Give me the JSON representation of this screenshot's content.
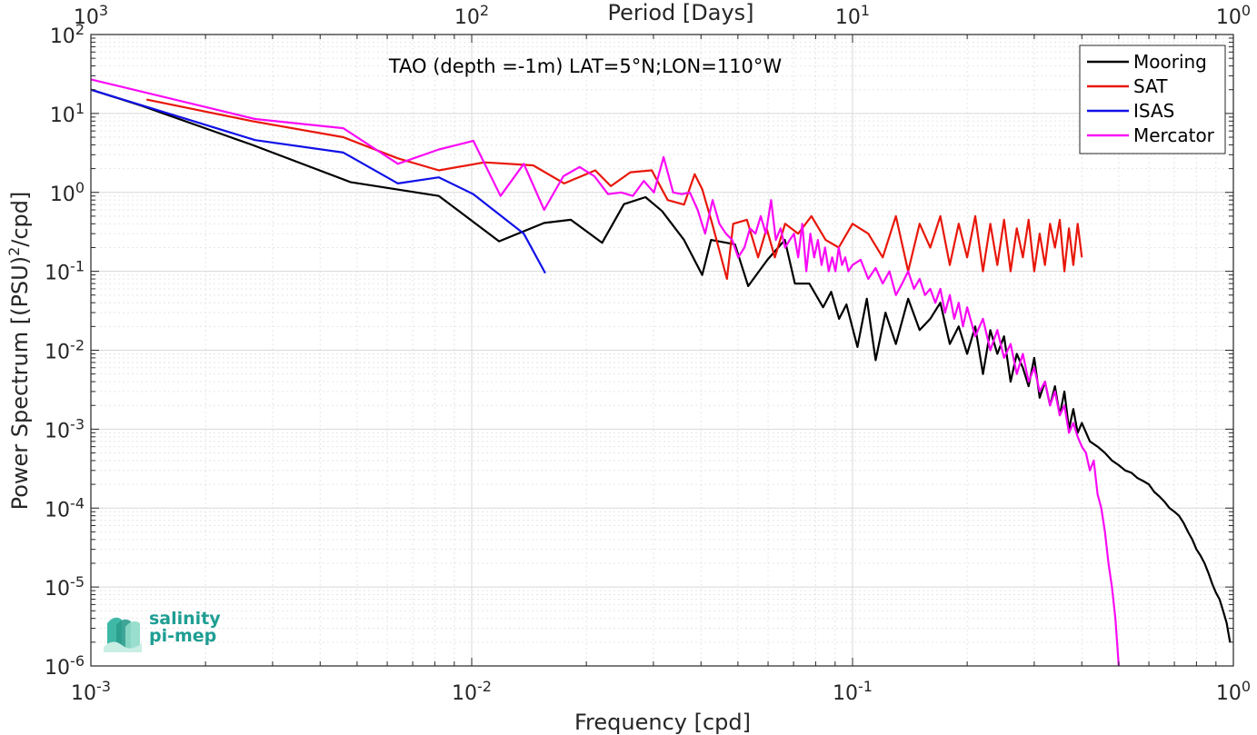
{
  "chart_data": {
    "type": "line",
    "title": "TAO (depth =-1m) LAT=5°N;LON=110°W",
    "xlabel": "Frequency [cpd]",
    "ylabel_main": "Power Spectrum [(PSU)",
    "ylabel_sup": "2",
    "ylabel_tail": "/cpd]",
    "top_xlabel": "Period [Days]",
    "xscale": "log",
    "yscale": "log",
    "xlim": [
      0.001,
      1
    ],
    "ylim": [
      1e-06,
      100
    ],
    "grid": true,
    "legend_position": "top-right",
    "xticks": [
      {
        "value": 0.001,
        "base": "10",
        "exp": "-3"
      },
      {
        "value": 0.01,
        "base": "10",
        "exp": "-2"
      },
      {
        "value": 0.1,
        "base": "10",
        "exp": "-1"
      },
      {
        "value": 1,
        "base": "10",
        "exp": "0"
      }
    ],
    "yticks": [
      {
        "value": 1e-06,
        "base": "10",
        "exp": "-6"
      },
      {
        "value": 1e-05,
        "base": "10",
        "exp": "-5"
      },
      {
        "value": 0.0001,
        "base": "10",
        "exp": "-4"
      },
      {
        "value": 0.001,
        "base": "10",
        "exp": "-3"
      },
      {
        "value": 0.01,
        "base": "10",
        "exp": "-2"
      },
      {
        "value": 0.1,
        "base": "10",
        "exp": "-1"
      },
      {
        "value": 1,
        "base": "10",
        "exp": "0"
      },
      {
        "value": 10,
        "base": "10",
        "exp": "1"
      },
      {
        "value": 100,
        "base": "10",
        "exp": "2"
      }
    ],
    "top_xticks": [
      {
        "freq": 0.001,
        "base": "10",
        "exp": "3"
      },
      {
        "freq": 0.01,
        "base": "10",
        "exp": "2"
      },
      {
        "freq": 0.1,
        "base": "10",
        "exp": "1"
      },
      {
        "freq": 1,
        "base": "10",
        "exp": "0"
      }
    ],
    "series": [
      {
        "name": "Mooring",
        "color": "#000000",
        "x": [
          0.001,
          0.00136,
          0.00265,
          0.0048,
          0.0082,
          0.0118,
          0.0155,
          0.0182,
          0.022,
          0.0251,
          0.0286,
          0.0316,
          0.0361,
          0.0403,
          0.0425,
          0.0491,
          0.0532,
          0.0598,
          0.0664,
          0.0706,
          0.077,
          0.0837,
          0.0879,
          0.0922,
          0.0964,
          0.103,
          0.109,
          0.115,
          0.122,
          0.13,
          0.14,
          0.15,
          0.16,
          0.17,
          0.18,
          0.19,
          0.2,
          0.21,
          0.22,
          0.23,
          0.24,
          0.25,
          0.26,
          0.27,
          0.28,
          0.29,
          0.3,
          0.31,
          0.32,
          0.33,
          0.34,
          0.35,
          0.36,
          0.37,
          0.38,
          0.39,
          0.4,
          0.42,
          0.44,
          0.46,
          0.48,
          0.5,
          0.52,
          0.54,
          0.56,
          0.58,
          0.6,
          0.62,
          0.64,
          0.66,
          0.68,
          0.7,
          0.72,
          0.74,
          0.76,
          0.78,
          0.8,
          0.82,
          0.84,
          0.86,
          0.88,
          0.9,
          0.92,
          0.94,
          0.96,
          0.98
        ],
        "y": [
          20,
          12.5,
          4.0,
          1.35,
          0.9,
          0.24,
          0.41,
          0.45,
          0.23,
          0.71,
          0.87,
          0.58,
          0.25,
          0.09,
          0.25,
          0.22,
          0.065,
          0.14,
          0.25,
          0.07,
          0.07,
          0.035,
          0.055,
          0.025,
          0.038,
          0.011,
          0.045,
          0.0075,
          0.03,
          0.012,
          0.045,
          0.018,
          0.025,
          0.04,
          0.012,
          0.02,
          0.009,
          0.02,
          0.005,
          0.018,
          0.009,
          0.015,
          0.004,
          0.009,
          0.006,
          0.0035,
          0.008,
          0.0025,
          0.004,
          0.002,
          0.0035,
          0.0015,
          0.003,
          0.001,
          0.0018,
          0.0009,
          0.0012,
          0.0007,
          0.0006,
          0.0005,
          0.0004,
          0.00035,
          0.0003,
          0.00028,
          0.00024,
          0.00022,
          0.0002,
          0.00016,
          0.00014,
          0.00012,
          0.0001,
          9e-05,
          8e-05,
          6.5e-05,
          5e-05,
          4e-05,
          3e-05,
          2.5e-05,
          2e-05,
          1.5e-05,
          1.1e-05,
          8.5e-06,
          7e-06,
          5e-06,
          3.5e-06,
          2e-06
        ]
      },
      {
        "name": "SAT",
        "color": "#e8170a",
        "x": [
          0.0014,
          0.00265,
          0.0046,
          0.0064,
          0.0082,
          0.0108,
          0.0145,
          0.0175,
          0.0211,
          0.0232,
          0.0261,
          0.0297,
          0.0327,
          0.0361,
          0.0385,
          0.0403,
          0.0428,
          0.0468,
          0.0486,
          0.0528,
          0.0565,
          0.0595,
          0.0625,
          0.0665,
          0.072,
          0.078,
          0.085,
          0.092,
          0.1,
          0.11,
          0.12,
          0.13,
          0.14,
          0.15,
          0.16,
          0.17,
          0.18,
          0.19,
          0.2,
          0.21,
          0.22,
          0.23,
          0.24,
          0.25,
          0.26,
          0.27,
          0.28,
          0.29,
          0.3,
          0.31,
          0.32,
          0.33,
          0.34,
          0.35,
          0.36,
          0.37,
          0.38,
          0.39,
          0.4
        ],
        "y": [
          15,
          8.0,
          5.0,
          2.7,
          1.9,
          2.4,
          2.2,
          1.3,
          1.9,
          1.2,
          1.8,
          1.9,
          0.8,
          0.7,
          1.7,
          1.1,
          0.4,
          0.08,
          0.4,
          0.45,
          0.15,
          0.35,
          0.15,
          0.4,
          0.3,
          0.5,
          0.25,
          0.2,
          0.4,
          0.3,
          0.15,
          0.5,
          0.1,
          0.4,
          0.2,
          0.5,
          0.12,
          0.4,
          0.15,
          0.5,
          0.1,
          0.4,
          0.12,
          0.45,
          0.1,
          0.35,
          0.15,
          0.45,
          0.1,
          0.3,
          0.12,
          0.4,
          0.2,
          0.45,
          0.1,
          0.35,
          0.12,
          0.4,
          0.15
        ]
      },
      {
        "name": "ISAS",
        "color": "#1010e8",
        "x": [
          0.001,
          0.0027,
          0.0046,
          0.0064,
          0.0082,
          0.0101,
          0.0137,
          0.0156
        ],
        "y": [
          20,
          4.6,
          3.2,
          1.3,
          1.55,
          0.95,
          0.3,
          0.095
        ]
      },
      {
        "name": "Mercator",
        "color": "#f90af5",
        "x": [
          0.001,
          0.0027,
          0.0046,
          0.0064,
          0.0082,
          0.0101,
          0.0119,
          0.0137,
          0.0155,
          0.0174,
          0.0192,
          0.021,
          0.0228,
          0.0247,
          0.0265,
          0.0283,
          0.0301,
          0.0319,
          0.0338,
          0.0356,
          0.0374,
          0.0392,
          0.041,
          0.0429,
          0.0447,
          0.0465,
          0.0483,
          0.0501,
          0.052,
          0.0538,
          0.0556,
          0.0574,
          0.0592,
          0.0611,
          0.0629,
          0.0647,
          0.0665,
          0.0684,
          0.0702,
          0.072,
          0.0738,
          0.0756,
          0.0775,
          0.0793,
          0.0811,
          0.0829,
          0.0847,
          0.0866,
          0.0884,
          0.0902,
          0.092,
          0.0938,
          0.0957,
          0.0975,
          0.1,
          0.105,
          0.11,
          0.115,
          0.12,
          0.125,
          0.13,
          0.135,
          0.14,
          0.145,
          0.15,
          0.155,
          0.16,
          0.165,
          0.17,
          0.175,
          0.18,
          0.185,
          0.19,
          0.195,
          0.2,
          0.21,
          0.22,
          0.23,
          0.24,
          0.25,
          0.26,
          0.27,
          0.28,
          0.29,
          0.3,
          0.31,
          0.32,
          0.33,
          0.34,
          0.35,
          0.36,
          0.37,
          0.38,
          0.39,
          0.4,
          0.41,
          0.42,
          0.43,
          0.44,
          0.45,
          0.46,
          0.47,
          0.48,
          0.49,
          0.5
        ],
        "y": [
          27,
          8.5,
          6.5,
          2.3,
          3.5,
          4.5,
          0.9,
          2.3,
          0.6,
          1.6,
          2.1,
          1.6,
          0.95,
          1.0,
          0.9,
          1.4,
          1.0,
          2.8,
          1.0,
          0.95,
          1.0,
          0.6,
          0.3,
          0.8,
          0.4,
          0.3,
          0.25,
          0.15,
          0.2,
          0.35,
          0.3,
          0.5,
          0.3,
          0.8,
          0.25,
          0.35,
          0.2,
          0.25,
          0.3,
          0.15,
          0.4,
          0.1,
          0.3,
          0.15,
          0.25,
          0.12,
          0.2,
          0.1,
          0.15,
          0.1,
          0.2,
          0.12,
          0.15,
          0.1,
          0.12,
          0.14,
          0.08,
          0.11,
          0.07,
          0.1,
          0.05,
          0.07,
          0.1,
          0.06,
          0.08,
          0.05,
          0.06,
          0.04,
          0.06,
          0.03,
          0.05,
          0.025,
          0.04,
          0.02,
          0.035,
          0.015,
          0.025,
          0.01,
          0.018,
          0.008,
          0.012,
          0.005,
          0.009,
          0.004,
          0.006,
          0.003,
          0.004,
          0.002,
          0.003,
          0.0015,
          0.002,
          0.0009,
          0.0012,
          0.0008,
          0.0006,
          0.0005,
          0.0003,
          0.0004,
          0.00015,
          0.0001,
          5e-05,
          2e-05,
          1e-05,
          4e-06,
          1e-06
        ]
      }
    ]
  },
  "logo": {
    "line1": "salinity",
    "line2": "pi-mep",
    "color": "#1e9e93"
  }
}
